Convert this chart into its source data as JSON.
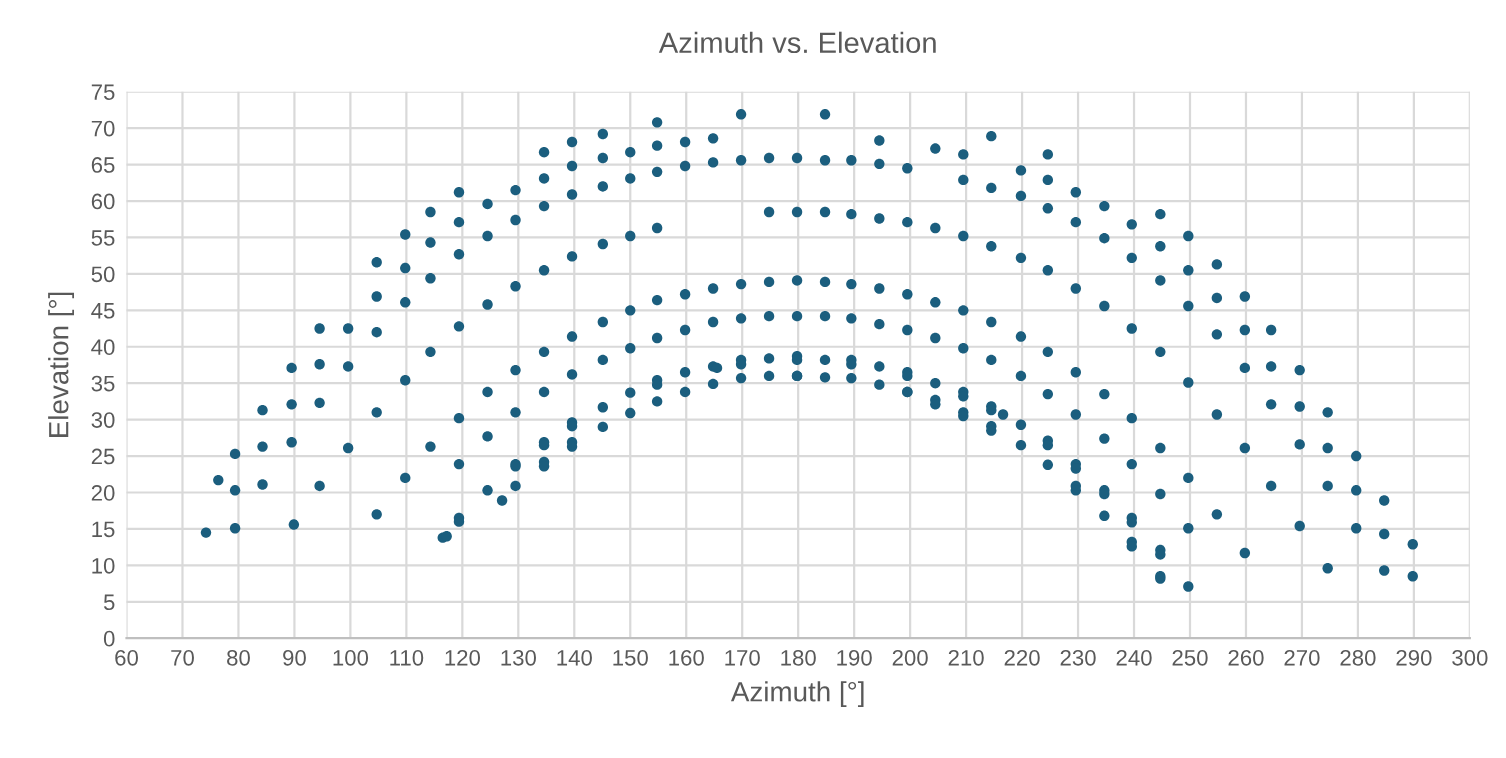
{
  "chart_data": {
    "type": "scatter",
    "title": "Azimuth vs. Elevation",
    "xlabel": "Azimuth [°]",
    "ylabel": "Elevation [°]",
    "xlim": [
      60,
      300
    ],
    "xticks": [
      60,
      70,
      80,
      90,
      100,
      110,
      120,
      130,
      140,
      150,
      160,
      170,
      180,
      190,
      200,
      210,
      220,
      230,
      240,
      250,
      260,
      270,
      280,
      290,
      300
    ],
    "ylim": [
      0,
      75
    ],
    "yticks": [
      0,
      5,
      10,
      15,
      20,
      25,
      30,
      35,
      40,
      45,
      50,
      55,
      60,
      65,
      70,
      75
    ],
    "grid": true,
    "marker": "circle",
    "series": [
      {
        "color": "#1b5e7e",
        "x": [
          74.2,
          76.4,
          79.4,
          79.4,
          79.4,
          84.3,
          84.3,
          84.3,
          89.5,
          89.5,
          89.5,
          89.9,
          94.5,
          94.5,
          94.5,
          94.5,
          99.6,
          99.6,
          99.6,
          104.7,
          104.7,
          104.7,
          104.7,
          104.7,
          109.8,
          109.8,
          109.8,
          109.8,
          109.8,
          114.3,
          114.3,
          114.3,
          114.3,
          114.3,
          116.5,
          117.2,
          119.4,
          119.4,
          119.4,
          119.4,
          119.4,
          119.4,
          119.4,
          119.4,
          124.5,
          124.5,
          124.5,
          124.5,
          124.5,
          124.5,
          127.1,
          129.5,
          129.5,
          129.5,
          129.5,
          129.5,
          129.5,
          129.5,
          129.5,
          134.6,
          134.6,
          134.6,
          134.6,
          134.6,
          134.6,
          134.6,
          134.6,
          134.6,
          134.6,
          139.6,
          139.6,
          139.6,
          139.6,
          139.6,
          139.6,
          139.6,
          139.6,
          139.6,
          139.6,
          145.1,
          145.1,
          145.1,
          145.1,
          145.1,
          145.1,
          145.1,
          145.1,
          150,
          150,
          150,
          150,
          150,
          150,
          150,
          154.8,
          154.8,
          154.8,
          154.8,
          154.8,
          154.8,
          154.8,
          154.8,
          154.8,
          159.8,
          159.8,
          159.8,
          159.8,
          159.8,
          159.8,
          164.8,
          164.8,
          164.8,
          164.8,
          164.8,
          165.5,
          164.8,
          169.8,
          169.8,
          169.8,
          169.8,
          169.8,
          169.8,
          169.8,
          174.8,
          174.8,
          174.8,
          174.8,
          174.8,
          174.8,
          179.8,
          179.8,
          179.8,
          179.8,
          179.8,
          179.8,
          179.8,
          179.8,
          184.8,
          184.8,
          184.8,
          184.8,
          184.8,
          184.8,
          184.8,
          189.5,
          189.5,
          189.5,
          189.5,
          189.5,
          189.5,
          189.5,
          194.5,
          194.5,
          194.5,
          194.5,
          194.5,
          194.5,
          194.5,
          199.5,
          199.5,
          199.5,
          199.5,
          199.5,
          199.5,
          199.5,
          199.5,
          204.5,
          204.5,
          204.5,
          204.5,
          204.5,
          204.5,
          204.5,
          209.5,
          209.5,
          209.5,
          209.5,
          209.5,
          209.5,
          209.5,
          209.5,
          209.5,
          214.5,
          214.5,
          214.5,
          214.5,
          214.5,
          214.5,
          214.5,
          214.5,
          214.5,
          216.6,
          219.8,
          219.8,
          219.8,
          219.8,
          219.8,
          219.8,
          219.8,
          224.6,
          224.6,
          224.6,
          224.6,
          224.6,
          224.6,
          224.6,
          224.6,
          224.6,
          229.6,
          229.6,
          229.6,
          229.6,
          229.6,
          229.6,
          229.6,
          229.6,
          229.6,
          234.7,
          234.7,
          234.7,
          234.7,
          234.7,
          234.7,
          234.7,
          234.7,
          239.6,
          239.6,
          239.6,
          239.6,
          239.6,
          239.6,
          239.6,
          239.6,
          239.6,
          244.7,
          244.7,
          244.7,
          244.7,
          244.7,
          244.7,
          244.7,
          244.7,
          244.7,
          244.7,
          249.7,
          249.7,
          249.7,
          249.7,
          249.7,
          249.7,
          249.7,
          254.8,
          254.8,
          254.8,
          254.8,
          254.8,
          259.8,
          259.8,
          259.8,
          259.8,
          259.8,
          264.5,
          264.5,
          264.5,
          264.5,
          269.6,
          269.6,
          269.6,
          269.6,
          274.6,
          274.6,
          274.6,
          274.6,
          279.7,
          279.7,
          279.7,
          284.7,
          284.7,
          284.7,
          289.8,
          289.8
        ],
        "values": [
          14.5,
          21.7,
          25.3,
          20.3,
          15.1,
          31.3,
          26.3,
          21.1,
          37.1,
          32.1,
          26.9,
          15.6,
          42.5,
          37.6,
          32.3,
          20.9,
          42.5,
          37.3,
          26.1,
          51.6,
          46.9,
          42.0,
          31.0,
          17.0,
          55.4,
          50.8,
          46.1,
          35.4,
          22.0,
          58.5,
          54.3,
          49.4,
          39.3,
          26.3,
          13.8,
          14.0,
          61.2,
          57.1,
          52.7,
          42.8,
          30.2,
          23.9,
          16.5,
          16.0,
          59.6,
          55.2,
          45.8,
          33.8,
          27.7,
          20.3,
          18.9,
          61.5,
          57.4,
          48.3,
          36.8,
          31.0,
          23.9,
          23.6,
          20.9,
          66.7,
          63.1,
          59.3,
          50.5,
          39.3,
          33.8,
          26.9,
          26.5,
          24.2,
          23.6,
          68.1,
          64.8,
          60.9,
          52.4,
          41.4,
          36.2,
          29.6,
          29.1,
          26.9,
          26.3,
          69.2,
          65.9,
          62.0,
          54.1,
          43.4,
          38.2,
          31.7,
          29.0,
          66.7,
          63.1,
          55.2,
          45.0,
          39.8,
          33.7,
          30.9,
          70.8,
          67.6,
          64.0,
          56.3,
          46.4,
          41.2,
          35.4,
          34.8,
          32.5,
          68.1,
          64.8,
          47.2,
          42.3,
          36.5,
          33.8,
          68.6,
          65.3,
          48.0,
          43.4,
          37.3,
          37.1,
          34.9,
          71.9,
          65.6,
          48.6,
          43.9,
          38.2,
          37.6,
          35.7,
          65.9,
          58.5,
          48.9,
          44.2,
          38.4,
          36.0,
          65.9,
          58.5,
          49.1,
          44.2,
          38.7,
          38.2,
          36.0,
          36.0,
          71.9,
          65.6,
          58.5,
          48.9,
          44.2,
          38.2,
          35.8,
          65.6,
          58.2,
          48.6,
          43.9,
          38.2,
          37.6,
          35.7,
          68.3,
          65.1,
          57.6,
          48.0,
          43.1,
          37.3,
          34.8,
          64.5,
          57.1,
          47.2,
          42.3,
          36.5,
          36.0,
          33.8,
          33.8,
          67.2,
          56.3,
          46.1,
          41.2,
          35.0,
          32.7,
          32.1,
          66.4,
          62.9,
          55.2,
          45.0,
          39.8,
          33.8,
          33.2,
          31.0,
          30.5,
          68.9,
          61.8,
          53.8,
          43.4,
          38.2,
          31.8,
          31.3,
          29.1,
          28.5,
          30.7,
          64.2,
          60.7,
          52.2,
          41.4,
          36.0,
          29.3,
          26.5,
          66.4,
          62.9,
          59.0,
          50.5,
          39.3,
          33.5,
          27.1,
          26.5,
          23.8,
          61.2,
          57.1,
          48.0,
          36.5,
          30.7,
          23.9,
          23.3,
          20.9,
          20.3,
          59.3,
          54.9,
          45.6,
          33.5,
          27.4,
          20.3,
          19.8,
          16.8,
          56.8,
          52.2,
          42.5,
          30.2,
          23.9,
          16.5,
          15.9,
          13.2,
          12.6,
          58.2,
          53.8,
          49.1,
          39.3,
          26.1,
          19.8,
          12.1,
          11.5,
          8.5,
          8.2,
          55.2,
          50.5,
          45.6,
          35.1,
          22.0,
          15.1,
          7.1,
          51.3,
          46.7,
          41.7,
          30.7,
          17.0,
          46.9,
          42.3,
          37.1,
          26.1,
          11.7,
          42.3,
          37.3,
          32.1,
          20.9,
          36.8,
          31.8,
          26.6,
          15.4,
          31.0,
          26.1,
          20.9,
          9.6,
          25.0,
          20.3,
          15.1,
          18.9,
          14.3,
          9.3,
          12.9,
          8.5
        ]
      }
    ]
  }
}
